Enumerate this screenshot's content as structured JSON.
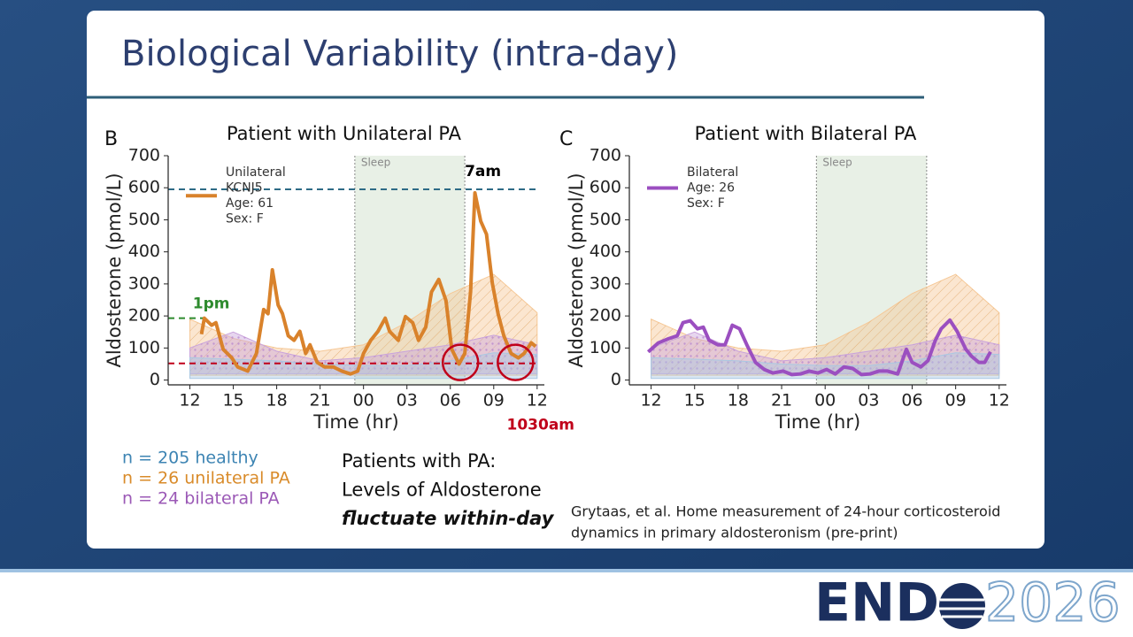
{
  "slide": {
    "title": "Biological Variability (intra-day)",
    "cohorts": [
      {
        "text": "n = 205 healthy",
        "color": "#3d84b3"
      },
      {
        "text": "n = 26   unilateral PA",
        "color": "#d98b2a"
      },
      {
        "text": "n = 24   bilateral PA",
        "color": "#9b59b6"
      }
    ],
    "takeaway": [
      "Patients with PA:",
      "Levels of Aldosterone",
      "fluctuate within-day"
    ],
    "citation": [
      "Grytaas, et al. Home measurement of 24-hour corticosteroid",
      "dynamics in primary aldosteronism (pre-print)"
    ],
    "logo": {
      "left": "END",
      "right": "2026"
    }
  },
  "chart_data": [
    {
      "type": "line",
      "panel": "B",
      "title": "Patient with Unilateral PA",
      "xlabel": "Time (hr)",
      "ylabel": "Aldosterone (pmol/L)",
      "xlim": [
        10.5,
        36.5
      ],
      "ylim": [
        -15,
        700
      ],
      "xticks": [
        12,
        15,
        18,
        21,
        {
          "value": 24,
          "label": "00"
        },
        {
          "value": 27,
          "label": "03"
        },
        {
          "value": 30,
          "label": "06"
        },
        {
          "value": 33,
          "label": "09"
        },
        {
          "value": 36,
          "label": "12"
        }
      ],
      "yticks": [
        0,
        100,
        200,
        300,
        400,
        500,
        600,
        700
      ],
      "sleep": {
        "label": "Sleep",
        "range": [
          23.4,
          31.0
        ]
      },
      "band_x": [
        12,
        15,
        18,
        21,
        24,
        27,
        30,
        33,
        36
      ],
      "bands": [
        {
          "color": "#f6c896",
          "low": [
            15,
            15,
            15,
            15,
            15,
            15,
            15,
            15,
            15
          ],
          "high": [
            190,
            130,
            100,
            90,
            110,
            180,
            270,
            330,
            210
          ]
        },
        {
          "color": "#c9a3dc",
          "low": [
            20,
            20,
            20,
            20,
            20,
            20,
            20,
            20,
            20
          ],
          "high": [
            100,
            150,
            90,
            60,
            70,
            90,
            110,
            140,
            110
          ]
        },
        {
          "color": "#a9c8e2",
          "low": [
            5,
            5,
            5,
            5,
            5,
            5,
            5,
            5,
            5
          ],
          "high": [
            70,
            65,
            60,
            50,
            45,
            45,
            60,
            85,
            80
          ]
        }
      ],
      "series": [
        {
          "name": "Unilateral",
          "color": "#d9822b",
          "x": [
            12.8,
            13.0,
            13.5,
            13.8,
            14.3,
            14.9,
            15.3,
            16.0,
            16.6,
            17.1,
            17.4,
            17.7,
            18.1,
            18.4,
            18.8,
            19.2,
            19.6,
            20.0,
            20.3,
            20.8,
            21.3,
            21.9,
            22.5,
            23.1,
            23.6,
            24.0,
            24.5,
            25.0,
            25.5,
            25.8,
            26.4,
            26.9,
            27.4,
            27.8,
            28.3,
            28.7,
            29.2,
            29.7,
            30.1,
            30.6,
            31.0,
            31.4,
            31.7,
            32.1,
            32.5,
            32.9,
            33.3,
            33.7,
            34.2,
            34.7,
            35.1,
            35.6,
            35.9
          ],
          "values": [
            143,
            193,
            171,
            179,
            96,
            69,
            41,
            28,
            83,
            220,
            207,
            344,
            234,
            207,
            138,
            124,
            152,
            83,
            110,
            55,
            41,
            41,
            28,
            19,
            28,
            83,
            124,
            152,
            193,
            152,
            124,
            198,
            179,
            124,
            165,
            275,
            314,
            248,
            96,
            50,
            83,
            275,
            584,
            496,
            455,
            303,
            207,
            138,
            83,
            69,
            83,
            116,
            105
          ]
        }
      ],
      "legend_notes": [
        "KCNJ5",
        "Age: 61",
        "Sex: F"
      ],
      "hlines": [
        {
          "value": 595,
          "color": "#2e6b86",
          "label": "7am",
          "label_color": "#000000"
        },
        {
          "value": 193,
          "color": "#2e8b2e",
          "label": "1pm",
          "label_color": "#2e8b2e",
          "xmax": 13.0
        },
        {
          "value": 52,
          "color": "#c0001a",
          "label": "1030am",
          "label_color": "#c0001a"
        }
      ],
      "circles": [
        {
          "x": 30.7,
          "y": 55,
          "color": "#c0001a"
        },
        {
          "x": 34.5,
          "y": 55,
          "color": "#c0001a"
        }
      ]
    },
    {
      "type": "line",
      "panel": "C",
      "title": "Patient with Bilateral PA",
      "xlabel": "Time (hr)",
      "ylabel": "Aldosterone (pmol/L)",
      "xlim": [
        10.5,
        36.5
      ],
      "ylim": [
        -15,
        700
      ],
      "xticks": [
        12,
        15,
        18,
        21,
        {
          "value": 24,
          "label": "00"
        },
        {
          "value": 27,
          "label": "03"
        },
        {
          "value": 30,
          "label": "06"
        },
        {
          "value": 33,
          "label": "09"
        },
        {
          "value": 36,
          "label": "12"
        }
      ],
      "yticks": [
        0,
        100,
        200,
        300,
        400,
        500,
        600,
        700
      ],
      "sleep": {
        "label": "Sleep",
        "range": [
          23.4,
          31.0
        ]
      },
      "band_x": [
        12,
        15,
        18,
        21,
        24,
        27,
        30,
        33,
        36
      ],
      "bands": [
        {
          "color": "#f6c896",
          "low": [
            15,
            15,
            15,
            15,
            15,
            15,
            15,
            15,
            15
          ],
          "high": [
            190,
            130,
            100,
            90,
            110,
            180,
            270,
            330,
            210
          ]
        },
        {
          "color": "#c9a3dc",
          "low": [
            20,
            20,
            20,
            20,
            20,
            20,
            20,
            20,
            20
          ],
          "high": [
            100,
            150,
            90,
            60,
            70,
            90,
            110,
            140,
            110
          ]
        },
        {
          "color": "#a9c8e2",
          "low": [
            5,
            5,
            5,
            5,
            5,
            5,
            5,
            5,
            5
          ],
          "high": [
            70,
            65,
            60,
            50,
            45,
            45,
            60,
            85,
            80
          ]
        }
      ],
      "series": [
        {
          "name": "Bilateral",
          "color": "#9b4fc0",
          "x": [
            11.8,
            12.5,
            13.2,
            13.8,
            14.2,
            14.7,
            15.2,
            15.6,
            16.0,
            16.6,
            17.1,
            17.6,
            18.1,
            18.6,
            19.2,
            19.8,
            20.4,
            21.1,
            21.7,
            22.3,
            22.9,
            23.5,
            24.1,
            24.7,
            25.3,
            25.9,
            26.5,
            27.1,
            27.7,
            28.3,
            29.0,
            29.6,
            30.0,
            30.6,
            31.1,
            31.6,
            32.0,
            32.6,
            33.1,
            33.7,
            34.1,
            34.6,
            35.0,
            35.4
          ],
          "values": [
            88,
            116,
            129,
            138,
            179,
            185,
            160,
            165,
            124,
            110,
            110,
            171,
            160,
            110,
            55,
            33,
            22,
            28,
            17,
            19,
            28,
            22,
            33,
            19,
            41,
            36,
            17,
            19,
            28,
            28,
            19,
            96,
            55,
            41,
            61,
            124,
            160,
            187,
            152,
            96,
            74,
            55,
            55,
            88
          ]
        }
      ],
      "legend_notes": [
        "Age: 26",
        "Sex: F"
      ]
    }
  ]
}
